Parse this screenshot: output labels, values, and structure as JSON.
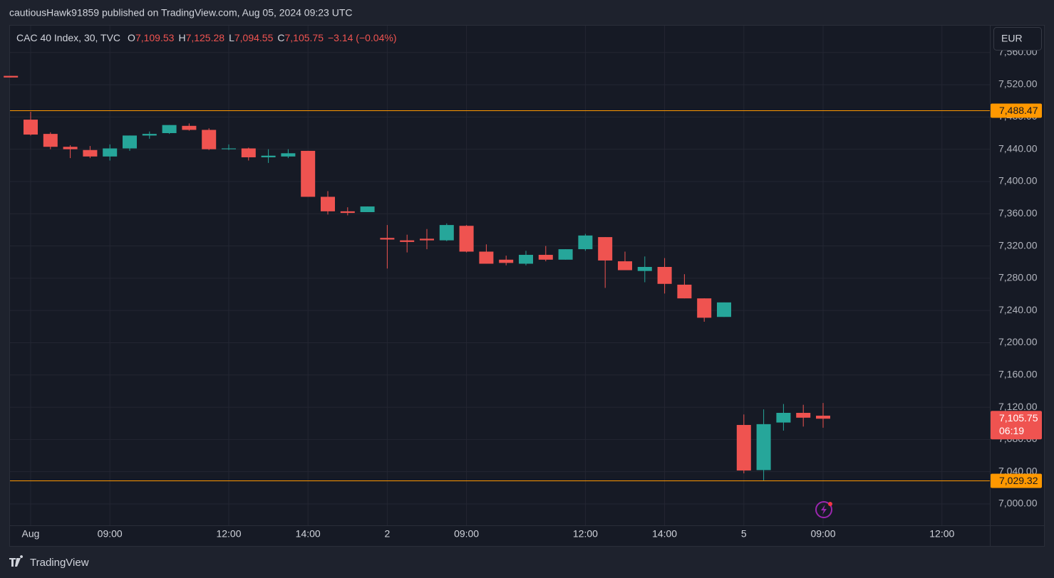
{
  "publish_line": "cautiousHawk91859 published on TradingView.com, Aug 05, 2024 09:23 UTC",
  "footer_brand": "TradingView",
  "chart_data": {
    "type": "candlestick",
    "symbol": "CAC 40 Index, 30, TVC",
    "ohlc_header": [
      {
        "key": "O",
        "value": "7,109.53"
      },
      {
        "key": "H",
        "value": "7,125.28"
      },
      {
        "key": "L",
        "value": "7,094.55"
      },
      {
        "key": "C",
        "value": "7,105.75"
      }
    ],
    "change": "−3.14 (−0.04%)",
    "currency": "EUR",
    "up_color": "#26a69a",
    "down_color": "#ef5350",
    "grid": true,
    "categories": [
      null,
      "Aug",
      null,
      null,
      null,
      "09:00",
      null,
      null,
      null,
      null,
      null,
      "12:00",
      null,
      null,
      null,
      "14:00",
      null,
      null,
      null,
      "2",
      null,
      null,
      null,
      "09:00",
      null,
      null,
      null,
      null,
      null,
      "12:00",
      null,
      null,
      null,
      "14:00",
      null,
      null,
      null,
      "5",
      null,
      null,
      null,
      "09:00",
      null,
      null,
      null,
      null,
      null,
      "12:00",
      null,
      null
    ],
    "open": [
      7531,
      7476.7,
      7459,
      7443,
      7439,
      7431,
      7441,
      7457,
      7460,
      7469,
      7464,
      7440,
      7441,
      7430,
      7431,
      7438,
      7381,
      7363,
      7362,
      7330,
      7327,
      7329,
      7327,
      7345,
      7313,
      7303,
      7298,
      7309,
      7303,
      7316,
      7331,
      7301,
      7289,
      7294,
      7272,
      7255,
      7232,
      7098,
      7042,
      7101,
      7113,
      7109.53,
      null,
      null,
      null,
      null,
      null,
      null,
      null,
      null
    ],
    "high": [
      7531,
      7486.5,
      7461,
      7445,
      7444,
      7446,
      7457,
      7462,
      7470,
      7472,
      7466,
      7446,
      7442,
      7440,
      7440,
      7438,
      7388,
      7368,
      7369,
      7346,
      7334,
      7341,
      7348,
      7346,
      7322,
      7308,
      7314,
      7320,
      7316,
      7335,
      7331,
      7313,
      7307,
      7305,
      7285,
      7255,
      7250,
      7111,
      7117.3,
      7124,
      7123,
      7125.28,
      null,
      null,
      null,
      null,
      null,
      null,
      null,
      null
    ],
    "low": [
      7529,
      7457,
      7440,
      7429,
      7429,
      7426,
      7438,
      7453,
      7459,
      7463,
      7439,
      7439,
      7426,
      7423,
      7429,
      7381,
      7359,
      7358,
      7362,
      7292,
      7312,
      7316,
      7326,
      7312,
      7298,
      7296,
      7296,
      7301,
      7303,
      7314,
      7268,
      7290,
      7275,
      7261,
      7255,
      7226,
      7232,
      7038,
      7029.3,
      7091,
      7096,
      7094.55,
      null,
      null,
      null,
      null,
      null,
      null,
      null,
      null
    ],
    "close": [
      7529,
      7458.2,
      7443,
      7440,
      7431,
      7441,
      7457,
      7459,
      7470,
      7464,
      7440,
      7441,
      7430,
      7432,
      7435,
      7381,
      7363,
      7361,
      7369,
      7328,
      7325,
      7327,
      7346,
      7313,
      7298,
      7299,
      7309,
      7303,
      7316,
      7333,
      7302,
      7290,
      7294,
      7273,
      7255,
      7231,
      7250,
      7041.5,
      7099,
      7113,
      7107,
      7105.75,
      null,
      null,
      null,
      null,
      null,
      null,
      null,
      null
    ],
    "ylim": [
      6973.5,
      7594.2
    ],
    "yticks": [
      {
        "value": 7000,
        "label": "7,000.00"
      },
      {
        "value": 7040,
        "label": "7,040.00"
      },
      {
        "value": 7080,
        "label": "7,080.00"
      },
      {
        "value": 7120,
        "label": "7,120.00"
      },
      {
        "value": 7160,
        "label": "7,160.00"
      },
      {
        "value": 7200,
        "label": "7,200.00"
      },
      {
        "value": 7240,
        "label": "7,240.00"
      },
      {
        "value": 7280,
        "label": "7,280.00"
      },
      {
        "value": 7320,
        "label": "7,320.00"
      },
      {
        "value": 7360,
        "label": "7,360.00"
      },
      {
        "value": 7400,
        "label": "7,400.00"
      },
      {
        "value": 7440,
        "label": "7,440.00"
      },
      {
        "value": 7480,
        "label": "7,480.00"
      },
      {
        "value": 7520,
        "label": "7,520.00"
      },
      {
        "value": 7560,
        "label": "7,560.00"
      }
    ],
    "hlines": [
      {
        "value": 7488.47,
        "label": "7,488.47",
        "color": "#ff9800"
      },
      {
        "value": 7029.32,
        "label": "7,029.32",
        "color": "#ff9800"
      }
    ],
    "last_price": {
      "value": 7105.75,
      "label": "7,105.75",
      "countdown": "06:19"
    }
  }
}
